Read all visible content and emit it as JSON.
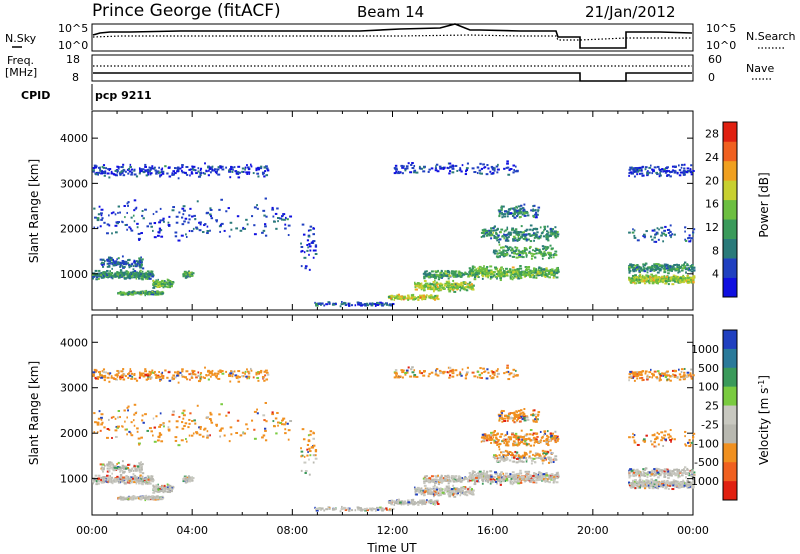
{
  "header": {
    "station": "Prince George (fitACF)",
    "beam": "Beam 14",
    "date": "21/Jan/2012"
  },
  "status_panels": {
    "nsky_label": "N.Sky",
    "nsearch_label": "N.Search",
    "freq_label_1": "Freq.",
    "freq_label_2": "[MHz]",
    "nave_label": "Nave",
    "cpid_label": "CPID",
    "cpid_value": "pcp 9211",
    "nsky_ticks_left": [
      "10^5",
      "10^0"
    ],
    "nsky_ticks_right": [
      "10^5",
      "10^0"
    ],
    "freq_ticks_left": [
      "18",
      "8"
    ],
    "nave_ticks_right": [
      "60",
      "0"
    ]
  },
  "chart_data": [
    {
      "type": "heatmap",
      "title": "",
      "ylabel": "Slant Range [km]",
      "xlabel": "",
      "ylim": [
        200,
        4600
      ],
      "xlim_hours": [
        0,
        24
      ],
      "yticks": [
        "1000",
        "2000",
        "3000",
        "4000"
      ],
      "colorbar": {
        "label": "Power [dB]",
        "ticks": [
          "4",
          "8",
          "12",
          "16",
          "20",
          "24",
          "28"
        ],
        "range": [
          0,
          30
        ],
        "colors": [
          "#1010e0",
          "#2040c0",
          "#2a7a7a",
          "#3a9a5a",
          "#6cbf40",
          "#c8d030",
          "#f0a020",
          "#f06020",
          "#e02010"
        ]
      }
    },
    {
      "type": "heatmap",
      "title": "",
      "ylabel": "Slant Range [km]",
      "xlabel": "Time UT",
      "ylim": [
        200,
        4600
      ],
      "xlim_hours": [
        0,
        24
      ],
      "yticks": [
        "1000",
        "2000",
        "3000",
        "4000"
      ],
      "xticks": [
        "00:00",
        "04:00",
        "08:00",
        "12:00",
        "16:00",
        "20:00",
        "00:00"
      ],
      "colorbar": {
        "label": "Velocity [m s",
        "label_sup": "-1",
        "label_close": "]",
        "ticks": [
          "1000",
          "500",
          "100",
          "25",
          "-25",
          "-100",
          "-500",
          "-1000"
        ],
        "colors": [
          "#2040c0",
          "#2a7a9a",
          "#3a9a5a",
          "#7acb40",
          "#c8c8c0",
          "#b8b8b0",
          "#f09020",
          "#f06020",
          "#e02010"
        ]
      }
    }
  ]
}
